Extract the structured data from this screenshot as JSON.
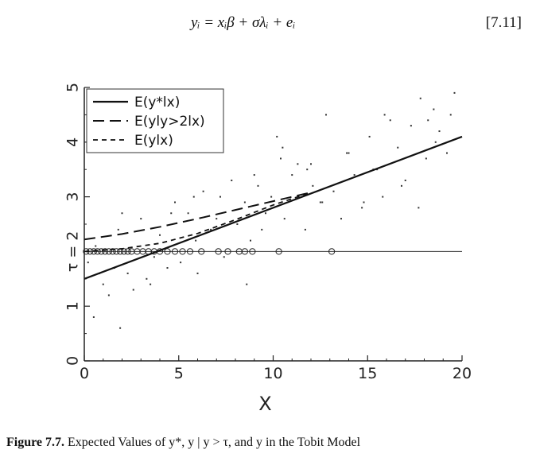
{
  "equation": {
    "text": "yᵢ = xᵢβ + σλᵢ + eᵢ",
    "number": "[7.11]"
  },
  "caption": {
    "label": "Figure 7.7.",
    "text": "Expected Values of y*, y | y > τ, and y in the Tobit Model"
  },
  "chart_data": {
    "type": "line",
    "title": "",
    "xlabel": "X",
    "ylabel": "",
    "xlim": [
      0,
      20
    ],
    "ylim": [
      0,
      5
    ],
    "x_ticks": [
      0,
      5,
      10,
      15,
      20
    ],
    "y_ticks": [
      0,
      1,
      2,
      3,
      4,
      5
    ],
    "y_tick_labels": [
      "0",
      "1",
      "τ = 2",
      "3",
      "4",
      "5"
    ],
    "threshold": 2,
    "legend_position": "top-left",
    "grid": false,
    "series": [
      {
        "name": "E(y*lx)",
        "style": "solid",
        "x": [
          0,
          20
        ],
        "y": [
          1.5,
          4.1
        ]
      },
      {
        "name": "E(yly>2lx)",
        "style": "long-dash",
        "x": [
          0,
          2,
          4,
          6,
          8,
          10,
          12
        ],
        "y": [
          2.22,
          2.32,
          2.45,
          2.6,
          2.76,
          2.92,
          3.08
        ]
      },
      {
        "name": "E(ylx)",
        "style": "short-dash",
        "x": [
          0,
          2,
          4,
          6,
          8,
          10,
          12
        ],
        "y": [
          2.0,
          2.05,
          2.15,
          2.33,
          2.58,
          2.85,
          3.08
        ]
      }
    ],
    "censored_x": [
      0.1,
      0.3,
      0.5,
      0.7,
      0.9,
      1.1,
      1.3,
      1.5,
      1.7,
      1.9,
      2.1,
      2.3,
      2.5,
      2.8,
      3.1,
      3.4,
      3.7,
      4.0,
      4.4,
      4.8,
      5.2,
      5.6,
      6.2,
      7.1,
      7.6,
      8.2,
      8.5,
      8.9,
      10.3,
      13.1
    ],
    "censored_y": 2,
    "points_x": [
      0.2,
      0.5,
      0.8,
      1.0,
      1.3,
      1.6,
      1.9,
      2.3,
      2.6,
      3.0,
      3.3,
      3.7,
      4.0,
      4.4,
      4.8,
      5.1,
      5.5,
      5.9,
      6.3,
      6.7,
      7.0,
      7.4,
      7.8,
      8.1,
      8.5,
      8.8,
      9.2,
      9.6,
      9.9,
      10.2,
      10.6,
      11.0,
      11.3,
      11.7,
      12.1,
      12.5,
      12.8,
      13.2,
      13.6,
      14.0,
      14.3,
      14.7,
      15.1,
      15.5,
      15.8,
      16.2,
      16.6,
      17.0,
      17.3,
      17.7,
      18.1,
      18.5,
      18.8,
      19.2,
      19.6,
      0.6,
      1.8,
      3.5,
      4.6,
      6.0,
      7.2,
      8.6,
      9.4,
      10.4,
      11.8,
      12.6,
      13.9,
      14.8,
      15.9,
      16.8,
      17.8,
      18.6,
      19.4,
      2.0,
      5.8,
      9.0,
      12.0,
      15.3,
      18.2,
      10.5
    ],
    "points_y": [
      1.8,
      0.8,
      1.6,
      1.4,
      1.2,
      1.7,
      0.6,
      1.6,
      1.3,
      2.6,
      1.5,
      1.9,
      2.3,
      1.7,
      2.9,
      1.8,
      2.7,
      2.2,
      3.1,
      2.4,
      2.6,
      1.9,
      3.3,
      2.5,
      2.9,
      2.2,
      3.2,
      2.7,
      3.0,
      4.1,
      2.6,
      3.4,
      3.6,
      2.4,
      3.2,
      2.9,
      4.5,
      3.1,
      2.6,
      3.8,
      3.4,
      2.8,
      4.1,
      3.5,
      3.0,
      4.4,
      3.9,
      3.3,
      4.3,
      2.8,
      3.7,
      4.6,
      4.2,
      3.8,
      4.9,
      2.1,
      2.4,
      1.4,
      2.7,
      1.6,
      3.0,
      1.4,
      2.4,
      3.7,
      3.5,
      2.9,
      3.8,
      2.9,
      4.5,
      3.2,
      4.8,
      4.0,
      4.5,
      2.7,
      3.0,
      3.4,
      3.6,
      3.5,
      4.4,
      3.9
    ]
  }
}
